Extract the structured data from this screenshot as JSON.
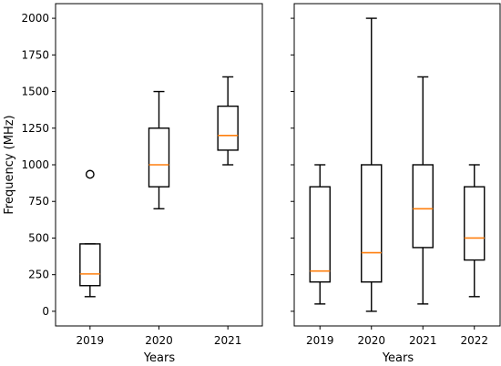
{
  "chart_data": [
    {
      "type": "box",
      "panel": "left",
      "xlabel": "Years",
      "ylabel": "Frequency (MHz)",
      "ylim": [
        -100,
        2100
      ],
      "yticks": [
        0,
        250,
        500,
        750,
        1000,
        1250,
        1500,
        1750,
        2000
      ],
      "categories": [
        "2019",
        "2020",
        "2021"
      ],
      "boxes": [
        {
          "label": "2019",
          "min": 100,
          "q1": 175,
          "median": 255,
          "q3": 460,
          "max": 460,
          "fliers": [
            935
          ]
        },
        {
          "label": "2020",
          "min": 700,
          "q1": 850,
          "median": 1000,
          "q3": 1250,
          "max": 1500,
          "fliers": []
        },
        {
          "label": "2021",
          "min": 1000,
          "q1": 1100,
          "median": 1200,
          "q3": 1400,
          "max": 1600,
          "fliers": []
        }
      ],
      "grid": false
    },
    {
      "type": "box",
      "panel": "right",
      "xlabel": "Years",
      "ylabel": "",
      "ylim": [
        -100,
        2100
      ],
      "yticks": [
        0,
        250,
        500,
        750,
        1000,
        1250,
        1500,
        1750,
        2000
      ],
      "show_ytick_labels": false,
      "categories": [
        "2019",
        "2020",
        "2021",
        "2022"
      ],
      "boxes": [
        {
          "label": "2019",
          "min": 50,
          "q1": 200,
          "median": 275,
          "q3": 850,
          "max": 1000,
          "fliers": []
        },
        {
          "label": "2020",
          "min": 0,
          "q1": 200,
          "median": 400,
          "q3": 1000,
          "max": 2000,
          "fliers": []
        },
        {
          "label": "2021",
          "min": 50,
          "q1": 435,
          "median": 700,
          "q3": 1000,
          "max": 1600,
          "fliers": []
        },
        {
          "label": "2022",
          "min": 100,
          "q1": 350,
          "median": 500,
          "q3": 850,
          "max": 1000,
          "fliers": []
        }
      ],
      "grid": false
    }
  ],
  "colors": {
    "median": "#ff7f0e",
    "box": "#000000",
    "background": "#ffffff"
  }
}
